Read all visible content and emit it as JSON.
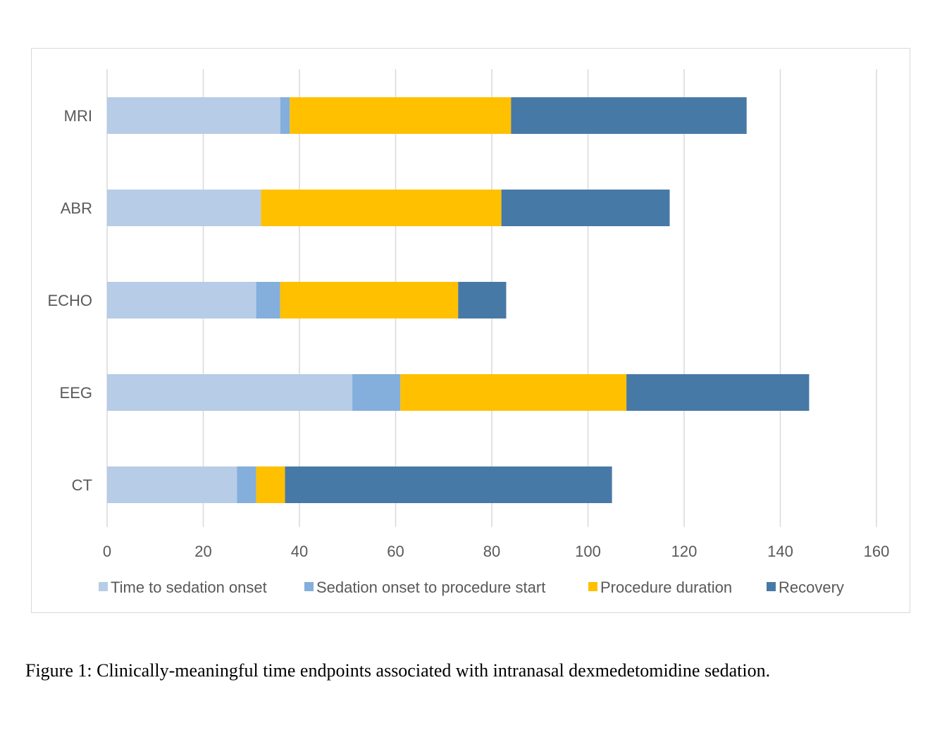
{
  "caption": "Figure 1: Clinically-meaningful time endpoints associated with intranasal dexmedetomidine sedation.",
  "chart_data": {
    "type": "bar",
    "orientation": "horizontal",
    "stacked": true,
    "categories": [
      "MRI",
      "ABR",
      "ECHO",
      "EEG",
      "CT"
    ],
    "series": [
      {
        "name": "Time to sedation onset",
        "color": "#b7cce6",
        "values": [
          36,
          32,
          31,
          51,
          27
        ]
      },
      {
        "name": "Sedation onset to procedure start",
        "color": "#84aedb",
        "values": [
          2,
          0,
          5,
          10,
          4
        ]
      },
      {
        "name": "Procedure duration",
        "color": "#ffc000",
        "values": [
          46,
          50,
          37,
          47,
          6
        ]
      },
      {
        "name": "Recovery",
        "color": "#4779a6",
        "values": [
          49,
          35,
          10,
          38,
          68
        ]
      }
    ],
    "xlim": [
      0,
      160
    ],
    "x_ticks": [
      "0",
      "20",
      "40",
      "60",
      "80",
      "100",
      "120",
      "140",
      "160"
    ],
    "xlabel": "",
    "ylabel": "",
    "grid": "vertical",
    "legend_position": "bottom"
  }
}
